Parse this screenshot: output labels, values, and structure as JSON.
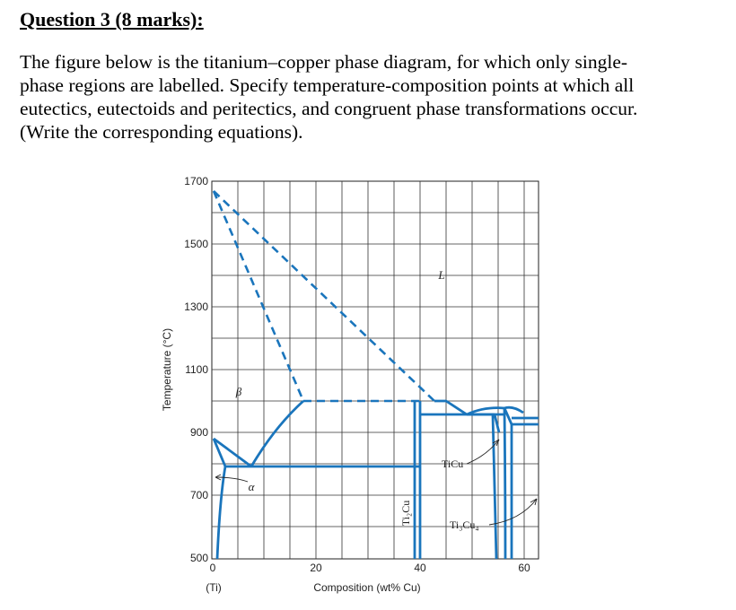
{
  "question": {
    "heading": "Question 3 (8 marks):",
    "lines": [
      "The figure below is the titanium–copper phase diagram, for which only single-",
      "phase regions are labelled. Specify temperature-composition points at which all",
      "eutectics, eutectoids and peritectics, and congruent phase transformations occur.",
      "(Write the corresponding equations)."
    ]
  },
  "diagram": {
    "y_axis_label": "Temperature (°C)",
    "x_axis_label": "Composition (wt% Cu)",
    "x_origin_label": "(Ti)",
    "y_ticks": [
      "1700",
      "1500",
      "1300",
      "1100",
      "900",
      "700",
      "500"
    ],
    "x_ticks": [
      "0",
      "20",
      "40",
      "60"
    ],
    "x_range": [
      0,
      62
    ],
    "y_range": [
      500,
      1700
    ],
    "line_color": "#1a75bc",
    "region_labels": {
      "liquid": "L",
      "beta": "β",
      "alpha": "α"
    },
    "compound_labels": {
      "ti2cu": "Ti₂Cu",
      "ticu": "TiCu",
      "ti3cu4": "Ti₃Cu₄"
    }
  }
}
